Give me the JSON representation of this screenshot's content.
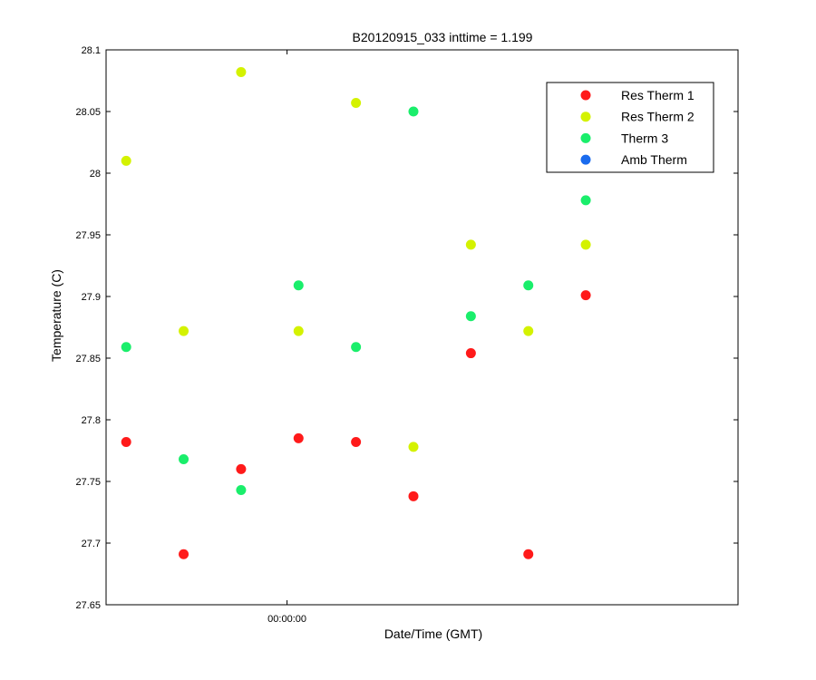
{
  "chart_data": {
    "type": "scatter",
    "title": "B20120915_033 inttime = 1.199",
    "xlabel": "Date/Time (GMT)",
    "ylabel": "Temperature (C)",
    "ylim": [
      27.65,
      28.1
    ],
    "xlim": [
      0,
      11
    ],
    "yticks": [
      "28.1",
      "28.05",
      "28",
      "27.95",
      "27.9",
      "27.85",
      "27.8",
      "27.75",
      "27.7",
      "27.65"
    ],
    "ytick_values": [
      28.1,
      28.05,
      28.0,
      27.95,
      27.9,
      27.85,
      27.8,
      27.75,
      27.7,
      27.65
    ],
    "xticks": [
      {
        "label": "00:00:00",
        "x": 3.15
      }
    ],
    "legend_position": "top-right",
    "grid": false,
    "series": [
      {
        "name": "Res Therm 1",
        "color": "#ff1a1a",
        "points": [
          [
            0.35,
            27.782
          ],
          [
            1.35,
            27.691
          ],
          [
            2.35,
            27.76
          ],
          [
            3.35,
            27.785
          ],
          [
            4.35,
            27.782
          ],
          [
            5.35,
            27.738
          ],
          [
            6.35,
            27.854
          ],
          [
            7.35,
            27.691
          ],
          [
            8.35,
            27.901
          ]
        ]
      },
      {
        "name": "Res Therm 2",
        "color": "#d4f200",
        "points": [
          [
            0.35,
            28.01
          ],
          [
            1.35,
            27.872
          ],
          [
            2.35,
            28.082
          ],
          [
            3.35,
            27.872
          ],
          [
            4.35,
            28.057
          ],
          [
            5.35,
            27.778
          ],
          [
            6.35,
            27.942
          ],
          [
            7.35,
            27.872
          ],
          [
            8.35,
            27.942
          ]
        ]
      },
      {
        "name": "Therm 3",
        "color": "#1aee6b",
        "points": [
          [
            0.35,
            27.859
          ],
          [
            1.35,
            27.768
          ],
          [
            2.35,
            27.743
          ],
          [
            3.35,
            27.909
          ],
          [
            4.35,
            27.859
          ],
          [
            5.35,
            28.05
          ],
          [
            6.35,
            27.884
          ],
          [
            7.35,
            27.909
          ],
          [
            8.35,
            27.978
          ]
        ]
      },
      {
        "name": "Amb Therm",
        "color": "#1a6bee",
        "points": []
      }
    ]
  }
}
